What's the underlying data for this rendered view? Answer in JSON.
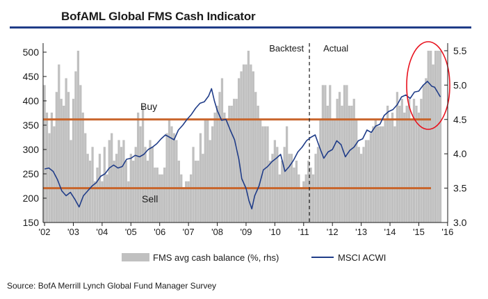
{
  "title": "BofAML Global FMS Cash Indicator",
  "source": "Source: BofA Merrill Lynch Global Fund Manager Survey",
  "chart_data": {
    "type": "bar+line",
    "x_ticks": [
      "'02",
      "'03",
      "'04",
      "'05",
      "'06",
      "'07",
      "'08",
      "'09",
      "'10",
      "'11",
      "'12",
      "'13",
      "'14",
      "'15",
      "'16"
    ],
    "left_axis": {
      "ticks": [
        150,
        200,
        250,
        300,
        350,
        400,
        450,
        500
      ],
      "range": [
        150,
        510
      ]
    },
    "right_axis": {
      "ticks": [
        "3.0",
        "3.5",
        "4.0",
        "4.5",
        "5.0",
        "5.5"
      ],
      "range": [
        3.0,
        5.55
      ]
    },
    "series": [
      {
        "name": "FMS avg cash balance (%, rhs)",
        "type": "bar",
        "color": "#c0c0c0",
        "x": [
          2002.0,
          2002.083,
          2002.167,
          2002.25,
          2002.333,
          2002.417,
          2002.5,
          2002.583,
          2002.667,
          2002.75,
          2002.833,
          2002.917,
          2003.0,
          2003.083,
          2003.167,
          2003.25,
          2003.333,
          2003.417,
          2003.5,
          2003.583,
          2003.667,
          2003.75,
          2003.833,
          2003.917,
          2004.0,
          2004.083,
          2004.167,
          2004.25,
          2004.333,
          2004.417,
          2004.5,
          2004.583,
          2004.667,
          2004.75,
          2004.833,
          2004.917,
          2005.0,
          2005.083,
          2005.167,
          2005.25,
          2005.333,
          2005.417,
          2005.5,
          2005.583,
          2005.667,
          2005.75,
          2005.833,
          2005.917,
          2006.0,
          2006.083,
          2006.167,
          2006.25,
          2006.333,
          2006.417,
          2006.5,
          2006.583,
          2006.667,
          2006.75,
          2006.833,
          2006.917,
          2007.0,
          2007.083,
          2007.167,
          2007.25,
          2007.333,
          2007.417,
          2007.5,
          2007.583,
          2007.667,
          2007.75,
          2007.833,
          2007.917,
          2008.0,
          2008.083,
          2008.167,
          2008.25,
          2008.333,
          2008.417,
          2008.5,
          2008.583,
          2008.667,
          2008.75,
          2008.833,
          2008.917,
          2009.0,
          2009.083,
          2009.167,
          2009.25,
          2009.333,
          2009.417,
          2009.5,
          2009.583,
          2009.667,
          2009.75,
          2009.833,
          2009.917,
          2010.0,
          2010.083,
          2010.167,
          2010.25,
          2010.333,
          2010.417,
          2010.5,
          2010.583,
          2010.667,
          2010.75,
          2010.833,
          2010.917,
          2011.0,
          2011.083,
          2011.167,
          2011.25,
          2011.333,
          2011.417,
          2011.5,
          2011.583,
          2011.667,
          2011.75,
          2011.833,
          2011.917,
          2012.0,
          2012.083,
          2012.167,
          2012.25,
          2012.333,
          2012.417,
          2012.5,
          2012.583,
          2012.667,
          2012.75,
          2012.833,
          2012.917,
          2013.0,
          2013.083,
          2013.167,
          2013.25,
          2013.333,
          2013.417,
          2013.5,
          2013.583,
          2013.667,
          2013.75,
          2013.833,
          2013.917,
          2014.0,
          2014.083,
          2014.167,
          2014.25,
          2014.333,
          2014.417,
          2014.5,
          2014.583,
          2014.667,
          2014.75,
          2014.833,
          2014.917,
          2015.0,
          2015.083,
          2015.167,
          2015.25,
          2015.333,
          2015.417,
          2015.5,
          2015.583,
          2015.667,
          2015.75
        ],
        "values": [
          5.0,
          4.6,
          4.3,
          4.6,
          4.4,
          4.9,
          5.3,
          4.8,
          4.7,
          5.1,
          4.9,
          4.2,
          4.8,
          5.2,
          5.5,
          5.0,
          4.6,
          4.3,
          4.0,
          3.9,
          4.1,
          3.6,
          3.8,
          4.0,
          3.6,
          4.1,
          3.7,
          4.2,
          4.3,
          3.9,
          4.0,
          4.2,
          4.1,
          4.2,
          3.9,
          3.6,
          4.0,
          3.9,
          4.1,
          4.6,
          4.4,
          4.7,
          4.1,
          3.9,
          4.2,
          4.1,
          3.8,
          3.8,
          3.7,
          3.7,
          3.8,
          4.3,
          4.5,
          4.4,
          4.3,
          4.2,
          3.9,
          3.7,
          3.5,
          3.6,
          3.6,
          3.7,
          4.1,
          3.9,
          3.9,
          4.3,
          4.0,
          4.5,
          4.5,
          4.2,
          4.4,
          4.6,
          4.7,
          4.9,
          5.1,
          4.6,
          4.5,
          4.7,
          4.7,
          4.8,
          4.8,
          5.1,
          5.2,
          5.3,
          5.3,
          5.5,
          5.3,
          5.2,
          4.9,
          4.7,
          4.5,
          4.4,
          4.4,
          4.4,
          3.9,
          4.0,
          4.2,
          4.1,
          3.7,
          3.9,
          4.1,
          4.4,
          4.0,
          4.0,
          3.8,
          3.9,
          3.7,
          3.5,
          3.6,
          3.7,
          3.9,
          3.8,
          3.7,
          4.0,
          4.1,
          4.5,
          5.0,
          5.0,
          4.7,
          5.0,
          4.5,
          4.5,
          4.8,
          4.9,
          4.7,
          5.0,
          5.0,
          4.7,
          4.7,
          4.8,
          4.5,
          4.1,
          4.0,
          4.1,
          4.2,
          4.2,
          4.3,
          4.4,
          4.5,
          4.4,
          4.4,
          4.4,
          4.5,
          4.7,
          4.5,
          4.6,
          4.4,
          4.9,
          4.7,
          4.8,
          4.6,
          4.7,
          4.8,
          4.5,
          4.8,
          4.7,
          4.6,
          4.8,
          5.0,
          5.1,
          5.5,
          5.5,
          5.3,
          5.5,
          5.5,
          5.5
        ]
      },
      {
        "name": "MSCI ACWI",
        "type": "line",
        "color": "#1f3c88",
        "x": [
          2002.0,
          2002.15,
          2002.3,
          2002.45,
          2002.6,
          2002.75,
          2002.9,
          2003.05,
          2003.2,
          2003.35,
          2003.5,
          2003.65,
          2003.8,
          2003.95,
          2004.1,
          2004.25,
          2004.4,
          2004.55,
          2004.7,
          2004.85,
          2005.0,
          2005.15,
          2005.3,
          2005.45,
          2005.6,
          2005.75,
          2005.9,
          2006.05,
          2006.2,
          2006.35,
          2006.5,
          2006.65,
          2006.8,
          2006.95,
          2007.1,
          2007.25,
          2007.4,
          2007.55,
          2007.7,
          2007.8,
          2007.9,
          2008.0,
          2008.15,
          2008.3,
          2008.45,
          2008.6,
          2008.75,
          2008.85,
          2009.0,
          2009.1,
          2009.2,
          2009.3,
          2009.45,
          2009.6,
          2009.75,
          2009.9,
          2010.05,
          2010.2,
          2010.35,
          2010.5,
          2010.65,
          2010.8,
          2010.95,
          2011.1,
          2011.25,
          2011.4,
          2011.55,
          2011.7,
          2011.85,
          2012.0,
          2012.15,
          2012.3,
          2012.45,
          2012.6,
          2012.75,
          2012.9,
          2013.05,
          2013.2,
          2013.35,
          2013.5,
          2013.65,
          2013.8,
          2013.95,
          2014.1,
          2014.25,
          2014.4,
          2014.55,
          2014.7,
          2014.85,
          2015.0,
          2015.15,
          2015.3,
          2015.45,
          2015.55,
          2015.65,
          2015.75
        ],
        "values": [
          260,
          262,
          255,
          238,
          215,
          205,
          212,
          198,
          182,
          205,
          215,
          225,
          232,
          245,
          250,
          262,
          268,
          262,
          265,
          280,
          282,
          288,
          285,
          290,
          300,
          305,
          312,
          322,
          330,
          325,
          320,
          340,
          350,
          362,
          372,
          385,
          395,
          398,
          410,
          425,
          400,
          380,
          360,
          362,
          340,
          320,
          280,
          240,
          220,
          195,
          178,
          205,
          225,
          258,
          265,
          275,
          282,
          290,
          255,
          265,
          278,
          295,
          305,
          318,
          325,
          330,
          305,
          282,
          295,
          300,
          318,
          310,
          285,
          298,
          305,
          318,
          322,
          340,
          335,
          348,
          352,
          370,
          378,
          382,
          392,
          408,
          412,
          405,
          418,
          420,
          432,
          440,
          430,
          428,
          418,
          408
        ]
      }
    ],
    "horizontal_lines": [
      {
        "label": "Buy",
        "value": 4.5,
        "axis": "right",
        "color": "#c8642a"
      },
      {
        "label": "Sell",
        "value": 3.5,
        "axis": "right",
        "color": "#c8642a"
      }
    ],
    "annotations": {
      "backtest": "Backtest",
      "actual": "Actual",
      "divider_x": 2011.2
    },
    "legend": {
      "placement": "bottom-center"
    }
  }
}
